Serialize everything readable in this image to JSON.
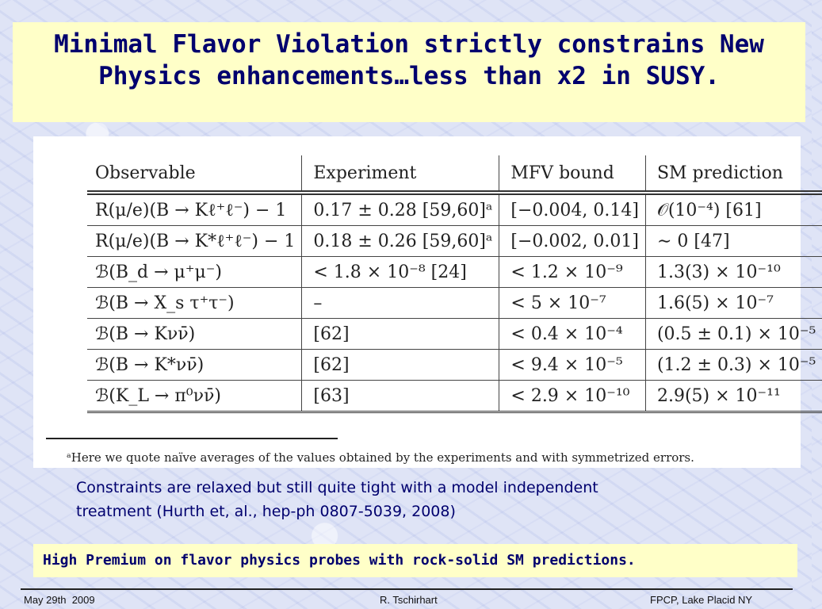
{
  "slide": {
    "title_line1": "Minimal Flavor Violation strictly constrains New",
    "title_line2": "Physics enhancements…less than x2 in SUSY."
  },
  "table": {
    "headers": {
      "observable": "Observable",
      "experiment": "Experiment",
      "mfv_bound": "MFV bound",
      "sm_prediction": "SM prediction"
    },
    "rows": [
      {
        "observable": "R(μ/e)(B → Kℓ⁺ℓ⁻) − 1",
        "experiment": "0.17 ± 0.28 [59,60]ᵃ",
        "mfv_bound": "[−0.004, 0.14]",
        "sm_prediction": "𝒪(10⁻⁴) [61]"
      },
      {
        "observable": "R(μ/e)(B → K*ℓ⁺ℓ⁻) − 1",
        "experiment": "0.18 ± 0.26 [59,60]ᵃ",
        "mfv_bound": "[−0.002, 0.01]",
        "sm_prediction": "∼ 0 [47]"
      },
      {
        "observable": "ℬ(B_d → μ⁺μ⁻)",
        "experiment": "< 1.8 × 10⁻⁸ [24]",
        "mfv_bound": "< 1.2 × 10⁻⁹",
        "sm_prediction": "1.3(3) × 10⁻¹⁰"
      },
      {
        "observable": "ℬ(B → X_s τ⁺τ⁻)",
        "experiment": "–",
        "mfv_bound": "< 5 × 10⁻⁷",
        "sm_prediction": "1.6(5) × 10⁻⁷"
      },
      {
        "observable": "ℬ(B → Kνν̄)",
        "experiment": "[62]",
        "mfv_bound": "< 0.4 × 10⁻⁴",
        "sm_prediction": "(0.5 ± 0.1) × 10⁻⁵"
      },
      {
        "observable": "ℬ(B → K*νν̄)",
        "experiment": "[62]",
        "mfv_bound": "< 9.4 × 10⁻⁵",
        "sm_prediction": "(1.2 ± 0.3) × 10⁻⁵"
      },
      {
        "observable": "ℬ(K_L → π⁰νν̄)",
        "experiment": "[63]",
        "mfv_bound": "< 2.9 × 10⁻¹⁰",
        "sm_prediction": "2.9(5) × 10⁻¹¹"
      }
    ],
    "footnote": "ᵃHere we quote naïve averages of the values obtained by the experiments and with symmetrized errors."
  },
  "body_text": {
    "line1": "Constraints are relaxed but still quite tight with a model independent",
    "line2": "treatment (Hurth et, al., hep-ph 0807-5039, 2008)"
  },
  "highlight": {
    "text": "High Premium on flavor physics probes with rock-solid SM predictions."
  },
  "footer": {
    "date": "May 29th  2009",
    "author": "R. Tschirhart",
    "event": "FPCP, Lake Placid NY"
  }
}
